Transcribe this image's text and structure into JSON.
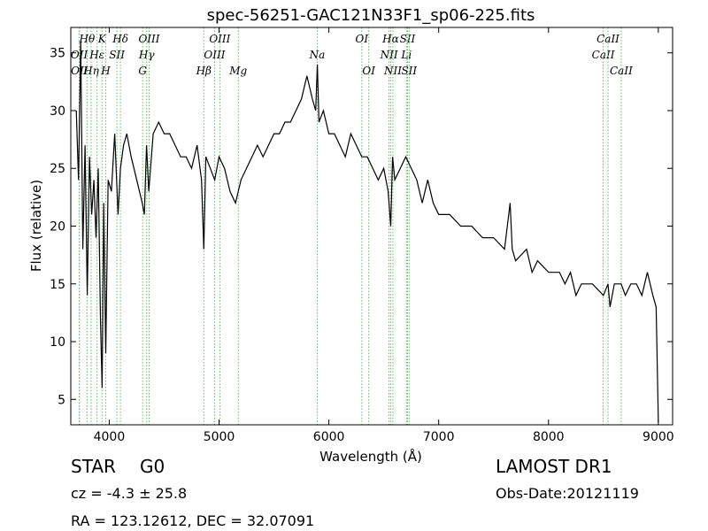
{
  "chart_data": {
    "type": "line",
    "title": "spec-56251-GAC121N33F1_sp06-225.fits",
    "xlabel": "Wavelength (Å)",
    "ylabel": "Flux (relative)",
    "xlim": [
      3650,
      9130
    ],
    "ylim": [
      2.8,
      37.2
    ],
    "xticks": [
      4000,
      5000,
      6000,
      7000,
      8000,
      9000
    ],
    "yticks": [
      5,
      10,
      15,
      20,
      25,
      30,
      35
    ],
    "grid": false,
    "series": [
      {
        "color": "#000000",
        "x": [
          3700,
          3720,
          3740,
          3760,
          3780,
          3800,
          3820,
          3840,
          3860,
          3880,
          3900,
          3920,
          3935,
          3950,
          3968,
          3990,
          4020,
          4050,
          4080,
          4102,
          4130,
          4160,
          4200,
          4250,
          4300,
          4320,
          4340,
          4360,
          4400,
          4450,
          4500,
          4550,
          4600,
          4650,
          4700,
          4750,
          4800,
          4840,
          4861,
          4880,
          4920,
          4960,
          5000,
          5050,
          5100,
          5150,
          5200,
          5250,
          5300,
          5350,
          5400,
          5450,
          5500,
          5550,
          5600,
          5650,
          5700,
          5750,
          5800,
          5850,
          5880,
          5895,
          5910,
          5950,
          6000,
          6050,
          6100,
          6150,
          6200,
          6250,
          6300,
          6350,
          6400,
          6450,
          6500,
          6540,
          6563,
          6580,
          6600,
          6650,
          6700,
          6750,
          6800,
          6850,
          6900,
          6950,
          7000,
          7100,
          7200,
          7300,
          7400,
          7500,
          7600,
          7650,
          7670,
          7700,
          7800,
          7850,
          7900,
          8000,
          8100,
          8150,
          8200,
          8250,
          8300,
          8400,
          8500,
          8542,
          8560,
          8600,
          8662,
          8700,
          8750,
          8800,
          8850,
          8900,
          8950,
          8980,
          9000
        ],
        "y": [
          30,
          24,
          36,
          18,
          27,
          14,
          26,
          21,
          24,
          19,
          25,
          12,
          6,
          22,
          9,
          24,
          23,
          28,
          21,
          25,
          27,
          28,
          26,
          24,
          22,
          21,
          27,
          23,
          28,
          29,
          28,
          28,
          27,
          26,
          26,
          25,
          27,
          24,
          18,
          26,
          25,
          24,
          26,
          25,
          23,
          22,
          24,
          25,
          26,
          27,
          26,
          27,
          28,
          28,
          29,
          29,
          30,
          31,
          33,
          31,
          30,
          34,
          29,
          30,
          28,
          28,
          27,
          26,
          28,
          27,
          26,
          26,
          25,
          24,
          25,
          23,
          20,
          26,
          24,
          25,
          26,
          25,
          24,
          22,
          24,
          22,
          21,
          21,
          20,
          20,
          19,
          19,
          18,
          22,
          18,
          17,
          18,
          16,
          17,
          16,
          16,
          15,
          16,
          14,
          15,
          15,
          14,
          15,
          13,
          15,
          15,
          14,
          15,
          15,
          14,
          16,
          14,
          13,
          3
        ],
        "values": [
          30,
          24,
          36,
          18,
          27,
          14,
          26,
          21,
          24,
          19,
          25,
          12,
          6,
          22,
          9,
          24,
          23,
          28,
          21,
          25,
          27,
          28,
          26,
          24,
          22,
          21,
          27,
          23,
          28,
          29,
          28,
          28,
          27,
          26,
          26,
          25,
          27,
          24,
          18,
          26,
          25,
          24,
          26,
          25,
          23,
          22,
          24,
          25,
          26,
          27,
          26,
          27,
          28,
          28,
          29,
          29,
          30,
          31,
          33,
          31,
          30,
          34,
          29,
          30,
          28,
          28,
          27,
          26,
          28,
          27,
          26,
          26,
          25,
          24,
          25,
          23,
          20,
          26,
          24,
          25,
          26,
          25,
          24,
          22,
          24,
          22,
          21,
          21,
          20,
          20,
          19,
          19,
          18,
          22,
          18,
          17,
          18,
          16,
          17,
          16,
          16,
          15,
          16,
          14,
          15,
          15,
          14,
          15,
          13,
          15,
          15,
          14,
          15,
          15,
          14,
          16,
          14,
          13,
          3
        ]
      }
    ],
    "lines": [
      {
        "label": "OII",
        "x": 3727,
        "row": 2
      },
      {
        "label": "OII",
        "x": 3729,
        "row": 3
      },
      {
        "label": "Hθ",
        "x": 3798,
        "row": 1
      },
      {
        "label": "Hη",
        "x": 3835,
        "row": 3
      },
      {
        "label": "Hε",
        "x": 3889,
        "row": 2
      },
      {
        "label": "K",
        "x": 3934,
        "row": 1
      },
      {
        "label": "H",
        "x": 3968,
        "row": 3
      },
      {
        "label": "SII",
        "x": 4070,
        "row": 2
      },
      {
        "label": "Hδ",
        "x": 4102,
        "row": 1
      },
      {
        "label": "G",
        "x": 4304,
        "row": 3
      },
      {
        "label": "Hγ",
        "x": 4341,
        "row": 2
      },
      {
        "label": "OIII",
        "x": 4363,
        "row": 1
      },
      {
        "label": "Hβ",
        "x": 4861,
        "row": 3
      },
      {
        "label": "OIII",
        "x": 4959,
        "row": 2
      },
      {
        "label": "OIII",
        "x": 5007,
        "row": 1
      },
      {
        "label": "Mg",
        "x": 5175,
        "row": 3
      },
      {
        "label": "Na",
        "x": 5894,
        "row": 2
      },
      {
        "label": "OI",
        "x": 6300,
        "row": 1
      },
      {
        "label": "OI",
        "x": 6363,
        "row": 3
      },
      {
        "label": "NII",
        "x": 6548,
        "row": 2
      },
      {
        "label": "NII",
        "x": 6583,
        "row": 3
      },
      {
        "label": "Hα",
        "x": 6563,
        "row": 1
      },
      {
        "label": "Li",
        "x": 6707,
        "row": 2
      },
      {
        "label": "SII",
        "x": 6716,
        "row": 1
      },
      {
        "label": "SII",
        "x": 6731,
        "row": 3
      },
      {
        "label": "CaII",
        "x": 8498,
        "row": 2
      },
      {
        "label": "CaII",
        "x": 8542,
        "row": 1
      },
      {
        "label": "CaII",
        "x": 8662,
        "row": 3
      }
    ]
  },
  "info": {
    "object_class": "STAR",
    "subclass": "G0",
    "survey": "LAMOST DR1",
    "redshift": "cz = -4.3 ± 25.8",
    "obs_date": "Obs-Date:20121119",
    "coords": "RA = 123.12612, DEC = 32.07091"
  }
}
